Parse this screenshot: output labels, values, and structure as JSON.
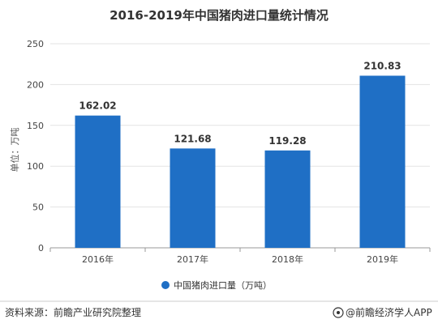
{
  "chart_data": {
    "type": "bar",
    "title": "2016-2019年中国猪肉进口量统计情况",
    "ylabel": "单位：万吨",
    "xlabel": "",
    "categories": [
      "2016年",
      "2017年",
      "2018年",
      "2019年"
    ],
    "series": [
      {
        "name": "中国猪肉进口量（万吨）",
        "values": [
          162.02,
          121.68,
          119.28,
          210.83
        ],
        "color": "#1f6fc5"
      }
    ],
    "ylim": [
      0,
      250
    ],
    "yticks": [
      0,
      50,
      100,
      150,
      200,
      250
    ],
    "grid": true,
    "legend_position": "bottom"
  },
  "footer": {
    "source": "资料来源：前瞻产业研究院整理",
    "brand": "@前瞻经济学人APP"
  }
}
